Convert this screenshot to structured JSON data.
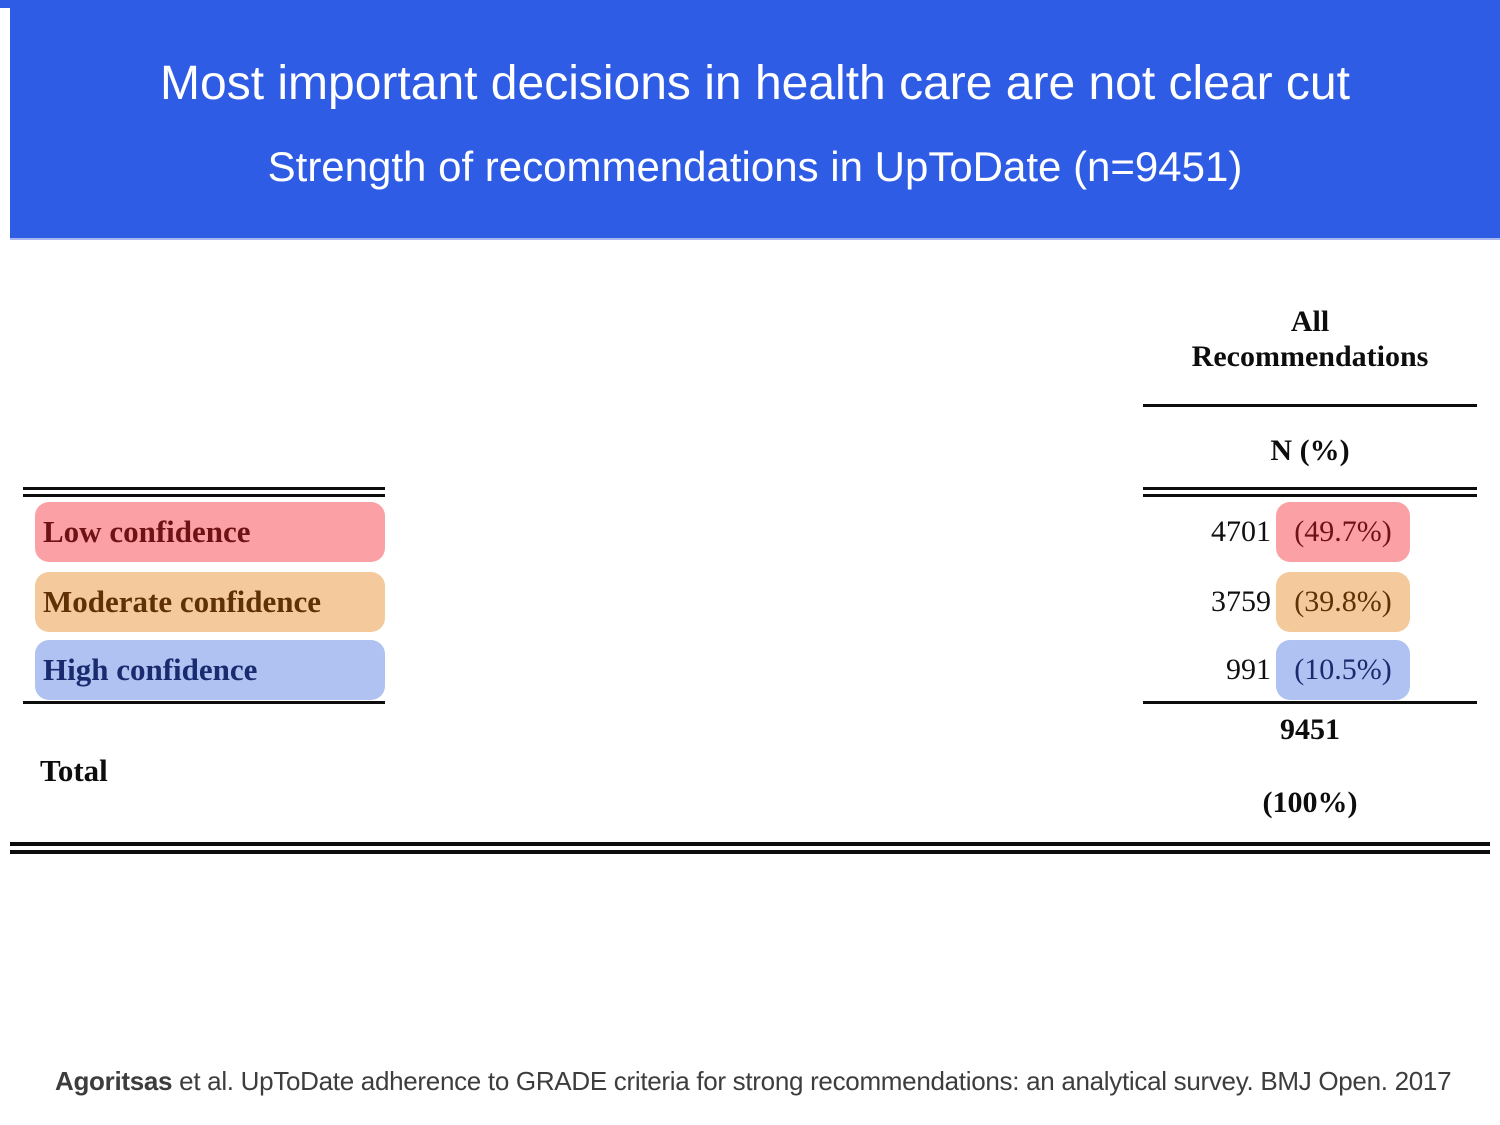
{
  "banner": {
    "title": "Most important decisions in health care are not clear cut",
    "subtitle": "Strength of recommendations in UpToDate (n=9451)",
    "bg_color": "#2f5ce4",
    "edge_color": "#a9b7f3",
    "text_color": "#ffffff"
  },
  "table": {
    "column_header_line1": "All",
    "column_header_line2": "Recommendations",
    "value_header": "N (%)",
    "rows": [
      {
        "label": "Low confidence",
        "n": "4701",
        "pct": "(49.7%)",
        "bg": "#fba0a4",
        "fg": "#6e1216"
      },
      {
        "label": "Moderate confidence",
        "n": "3759",
        "pct": "(39.8%)",
        "bg": "#f4c99c",
        "fg": "#5f3104"
      },
      {
        "label": "High confidence",
        "n": "991",
        "pct": "(10.5%)",
        "bg": "#afc2f2",
        "fg": "#192a6e"
      }
    ],
    "total": {
      "label": "Total",
      "n": "9451",
      "pct": "(100%)"
    }
  },
  "footer": {
    "author": "Agoritsas",
    "citation": " et al. UpToDate adherence to GRADE criteria for strong recommendations: an analytical survey. BMJ Open. 2017"
  }
}
